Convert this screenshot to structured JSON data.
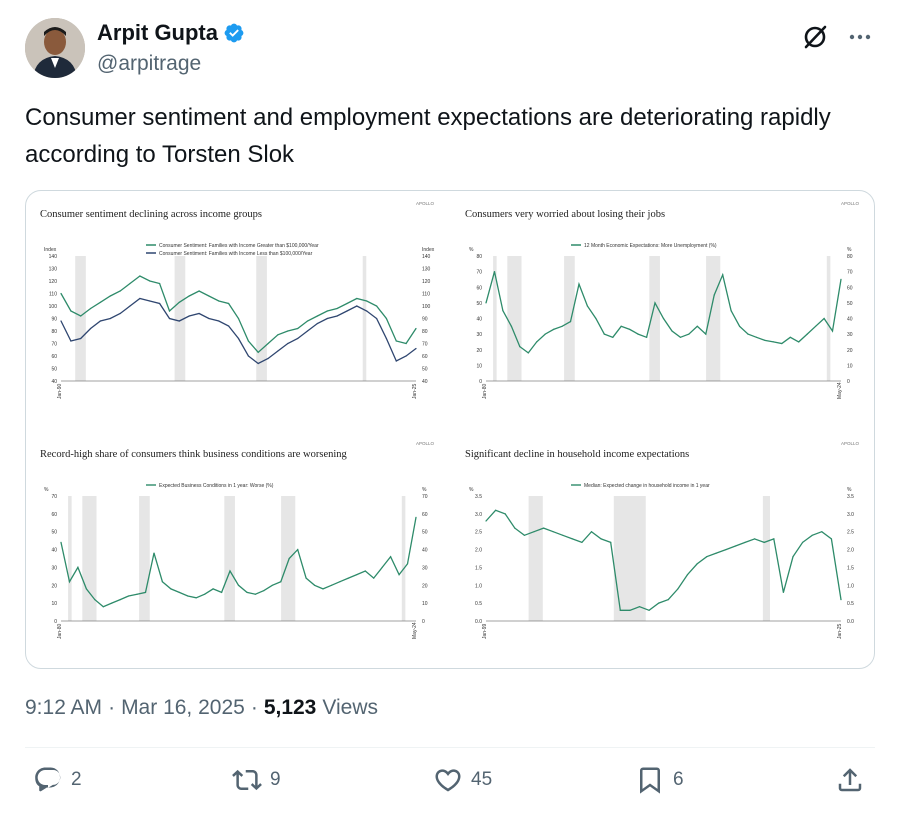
{
  "author": {
    "display_name": "Arpit Gupta",
    "handle": "@arpitrage",
    "verified_icon": "verified-badge-icon"
  },
  "tweet": {
    "text": "Consumer sentiment and employment  expectations are deteriorating rapidly according to Torsten Slok"
  },
  "meta": {
    "time": "9:12 AM",
    "date": "Mar 16, 2025",
    "views_count": "5,123",
    "views_label": "Views"
  },
  "actions": {
    "replies": "2",
    "reposts": "9",
    "likes": "45",
    "bookmarks": "6"
  },
  "colors": {
    "series_green": "#2e8b6a",
    "series_navy": "#2f4670",
    "recession_shade": "#e6e6e6",
    "accent_blue": "#1d9bf0"
  },
  "chart_data": [
    {
      "type": "line",
      "title": "Consumer sentiment declining across income groups",
      "source": "APOLLO",
      "ylabel_left": "Index",
      "ylabel_right": "Index",
      "ylim": [
        40,
        140
      ],
      "yticks": [
        "140",
        "130",
        "120",
        "110",
        "100",
        "90",
        "80",
        "70",
        "60",
        "50",
        "40"
      ],
      "x_start": "Jan-90",
      "x_end": "Jan-25",
      "series": [
        {
          "name": "Consumer Sentiment: Families with Income Greater than $100,000/Year",
          "color": "#2e8b6a",
          "values": [
            110,
            96,
            92,
            98,
            103,
            108,
            112,
            118,
            124,
            120,
            118,
            96,
            103,
            108,
            112,
            108,
            104,
            102,
            90,
            72,
            63,
            70,
            77,
            80,
            82,
            88,
            92,
            96,
            98,
            102,
            106,
            104,
            100,
            90,
            72,
            70,
            82
          ]
        },
        {
          "name": "Consumer Sentiment: Families with Income Less than $100,000/Year",
          "color": "#2f4670",
          "values": [
            88,
            72,
            74,
            82,
            88,
            90,
            94,
            100,
            106,
            104,
            102,
            90,
            88,
            92,
            94,
            90,
            88,
            84,
            74,
            60,
            54,
            58,
            64,
            70,
            74,
            80,
            86,
            90,
            92,
            96,
            100,
            96,
            90,
            74,
            56,
            60,
            66
          ]
        }
      ]
    },
    {
      "type": "line",
      "title": "Consumers very worried about losing their jobs",
      "source": "APOLLO",
      "ylabel_left": "%",
      "ylabel_right": "%",
      "ylim": [
        0,
        80
      ],
      "yticks": [
        "80",
        "70",
        "60",
        "50",
        "40",
        "30",
        "20",
        "10",
        "0"
      ],
      "x_start": "Jan-80",
      "x_end": "May-24",
      "series": [
        {
          "name": "12 Month Economic Expectations: More Unemployment (%)",
          "color": "#2e8b6a",
          "values": [
            50,
            70,
            45,
            35,
            22,
            18,
            25,
            30,
            33,
            35,
            38,
            62,
            48,
            40,
            30,
            28,
            35,
            33,
            30,
            28,
            50,
            40,
            32,
            28,
            30,
            35,
            30,
            55,
            68,
            45,
            35,
            30,
            28,
            26,
            25,
            24,
            28,
            25,
            30,
            35,
            40,
            32,
            65
          ]
        }
      ]
    },
    {
      "type": "line",
      "title": "Record-high share of consumers think business conditions are worsening",
      "source": "APOLLO",
      "ylabel_left": "%",
      "ylabel_right": "%",
      "ylim": [
        0,
        70
      ],
      "yticks": [
        "70",
        "60",
        "50",
        "40",
        "30",
        "20",
        "10",
        "0"
      ],
      "x_start": "Jan-80",
      "x_end": "May-24",
      "series": [
        {
          "name": "Expected Business Conditions in 1 year: Worse (%)",
          "color": "#2e8b6a",
          "values": [
            44,
            22,
            30,
            18,
            12,
            8,
            10,
            12,
            14,
            15,
            16,
            38,
            22,
            18,
            16,
            14,
            13,
            15,
            18,
            16,
            28,
            20,
            16,
            15,
            17,
            20,
            22,
            35,
            40,
            24,
            20,
            18,
            20,
            22,
            24,
            26,
            28,
            24,
            30,
            36,
            26,
            32,
            58
          ]
        }
      ]
    },
    {
      "type": "line",
      "title": "Significant decline in household income expectations",
      "source": "APOLLO",
      "ylabel_left": "%",
      "ylabel_right": "%",
      "ylim": [
        0,
        3.5
      ],
      "yticks": [
        "3.5",
        "3.0",
        "2.5",
        "2.0",
        "1.5",
        "1.0",
        "0.5",
        "0.0"
      ],
      "x_start": "Jan-99",
      "x_end": "Jan-25",
      "series": [
        {
          "name": "Median: Expected change in household income in 1 year",
          "color": "#2e8b6a",
          "values": [
            2.8,
            3.1,
            3.0,
            2.6,
            2.4,
            2.5,
            2.6,
            2.5,
            2.4,
            2.3,
            2.2,
            2.5,
            2.3,
            2.2,
            0.3,
            0.3,
            0.4,
            0.3,
            0.5,
            0.6,
            0.9,
            1.3,
            1.6,
            1.8,
            1.9,
            2.0,
            2.1,
            2.2,
            2.3,
            2.2,
            2.3,
            0.8,
            1.8,
            2.2,
            2.4,
            2.5,
            2.3,
            0.6
          ]
        }
      ]
    }
  ]
}
